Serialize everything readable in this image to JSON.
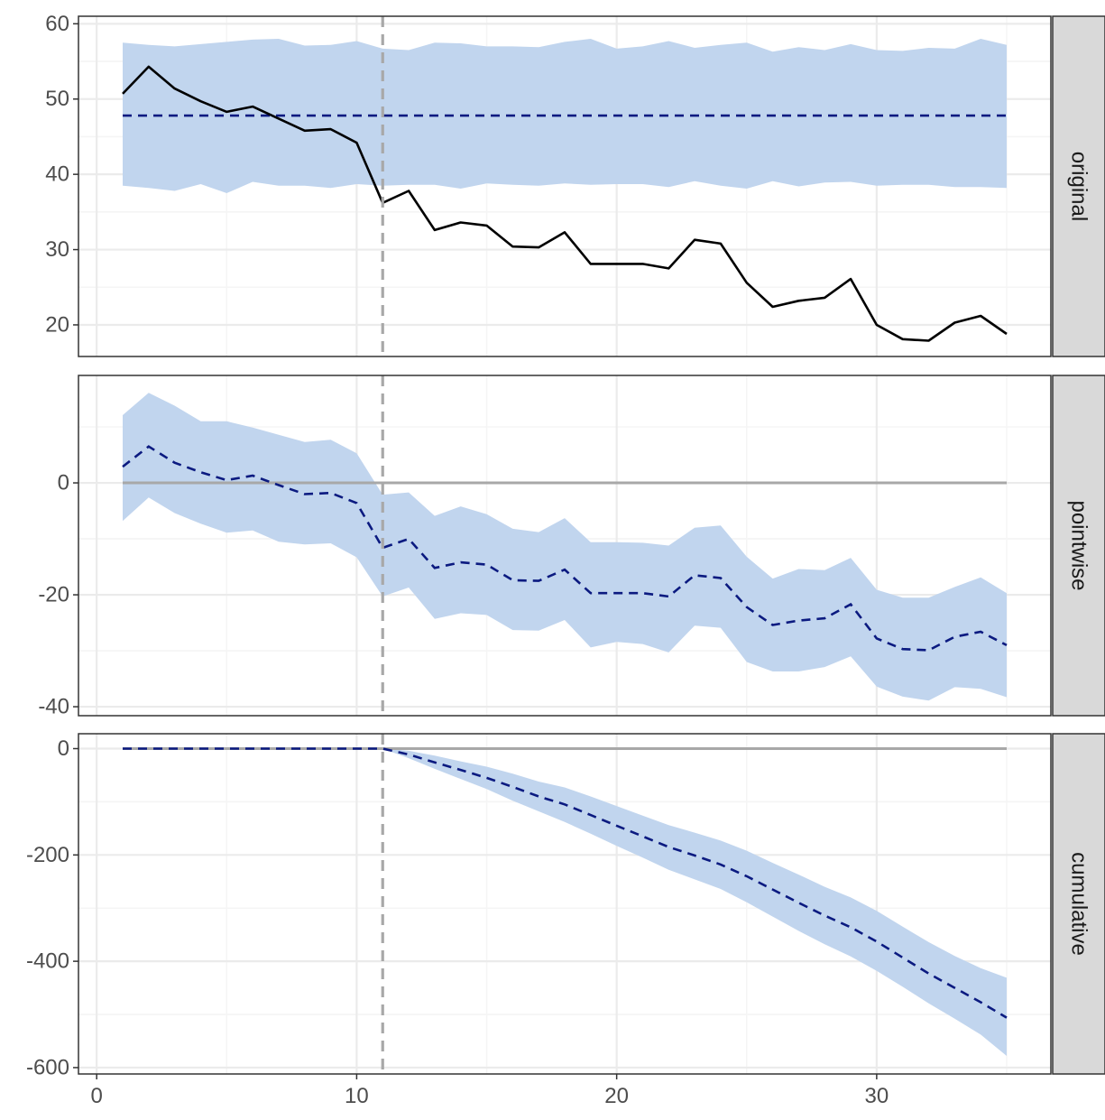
{
  "chart_data": {
    "type": "line",
    "x_ticks": [
      0,
      10,
      20,
      30
    ],
    "xlim": [
      -0.7,
      36.7
    ],
    "intervention_x": 11,
    "colors": {
      "band": "#c1d5ee",
      "observed_line": "#000000",
      "predicted_line": "#0b1a80",
      "reference_line": "#a8a8a8",
      "intervention_line": "#a8a8a8",
      "strip_bg": "#d9d9d9",
      "grid_major": "#ebebeb",
      "grid_minor": "#f5f5f5"
    },
    "panels": [
      {
        "strip_label": "original",
        "ylim": [
          15.8,
          61.0
        ],
        "y_ticks": [
          20,
          30,
          40,
          50,
          60
        ],
        "y_tick_labels": [
          "20",
          "30",
          "40",
          "50",
          "60"
        ],
        "x": [
          1,
          2,
          3,
          4,
          5,
          6,
          7,
          8,
          9,
          10,
          11,
          12,
          13,
          14,
          15,
          16,
          17,
          18,
          19,
          20,
          21,
          22,
          23,
          24,
          25,
          26,
          27,
          28,
          29,
          30,
          31,
          32,
          33,
          34,
          35
        ],
        "observed": [
          50.7,
          54.3,
          51.4,
          49.7,
          48.3,
          49.0,
          47.4,
          45.8,
          46.0,
          44.2,
          36.2,
          37.8,
          32.6,
          33.6,
          33.2,
          30.4,
          30.3,
          32.3,
          28.1,
          28.1,
          28.1,
          27.5,
          31.3,
          30.8,
          25.6,
          22.4,
          23.2,
          23.6,
          26.1,
          20.0,
          18.1,
          17.9,
          20.3,
          21.2,
          18.8
        ],
        "predicted": [
          47.8,
          47.8,
          47.8,
          47.8,
          47.8,
          47.8,
          47.8,
          47.8,
          47.8,
          47.8,
          47.8,
          47.8,
          47.8,
          47.8,
          47.8,
          47.8,
          47.8,
          47.8,
          47.8,
          47.8,
          47.8,
          47.8,
          47.8,
          47.8,
          47.8,
          47.8,
          47.8,
          47.8,
          47.8,
          47.8,
          47.8,
          47.8,
          47.8,
          47.8,
          47.8
        ],
        "lower": [
          38.5,
          38.2,
          37.8,
          38.7,
          37.5,
          39.0,
          38.5,
          38.5,
          38.2,
          38.7,
          38.5,
          38.6,
          38.6,
          38.1,
          38.8,
          38.6,
          38.5,
          38.8,
          38.6,
          38.7,
          38.7,
          38.3,
          39.1,
          38.5,
          38.1,
          39.1,
          38.4,
          38.9,
          39.0,
          38.5,
          38.6,
          38.6,
          38.3,
          38.3,
          38.2
        ],
        "upper": [
          57.5,
          57.2,
          57.0,
          57.3,
          57.6,
          57.9,
          58.0,
          57.1,
          57.2,
          57.7,
          56.7,
          56.5,
          57.5,
          57.4,
          57.0,
          57.0,
          56.9,
          57.6,
          58.0,
          56.7,
          57.0,
          57.7,
          56.8,
          57.2,
          57.5,
          56.3,
          56.9,
          56.5,
          57.3,
          56.5,
          56.4,
          56.8,
          56.7,
          58.0,
          57.2
        ],
        "show_reference": false
      },
      {
        "strip_label": "pointwise",
        "ylim": [
          -41.6,
          19.2
        ],
        "y_ticks": [
          -40,
          -20,
          0
        ],
        "y_tick_labels": [
          "-40",
          "-20",
          "0"
        ],
        "x": [
          1,
          2,
          3,
          4,
          5,
          6,
          7,
          8,
          9,
          10,
          11,
          12,
          13,
          14,
          15,
          16,
          17,
          18,
          19,
          20,
          21,
          22,
          23,
          24,
          25,
          26,
          27,
          28,
          29,
          30,
          31,
          32,
          33,
          34,
          35
        ],
        "predicted": [
          2.9,
          6.5,
          3.6,
          1.9,
          0.5,
          1.3,
          -0.4,
          -2.0,
          -1.8,
          -3.6,
          -11.6,
          -10.0,
          -15.2,
          -14.2,
          -14.6,
          -17.4,
          -17.5,
          -15.5,
          -19.7,
          -19.7,
          -19.7,
          -20.3,
          -16.5,
          -17.0,
          -22.2,
          -25.4,
          -24.6,
          -24.2,
          -21.7,
          -27.8,
          -29.7,
          -29.9,
          -27.5,
          -26.6,
          -29.0
        ],
        "lower": [
          -6.8,
          -2.6,
          -5.4,
          -7.3,
          -8.9,
          -8.5,
          -10.5,
          -11.0,
          -10.8,
          -13.3,
          -20.3,
          -18.7,
          -24.3,
          -23.3,
          -23.6,
          -26.3,
          -26.4,
          -24.5,
          -29.4,
          -28.4,
          -28.8,
          -30.3,
          -25.5,
          -25.9,
          -32.0,
          -33.7,
          -33.7,
          -32.9,
          -31.0,
          -36.4,
          -38.2,
          -38.9,
          -36.5,
          -36.8,
          -38.3
        ],
        "upper": [
          12.1,
          16.1,
          13.8,
          11.0,
          11.0,
          9.9,
          8.6,
          7.3,
          7.7,
          5.3,
          -2.1,
          -1.7,
          -5.9,
          -4.2,
          -5.6,
          -8.2,
          -8.8,
          -6.3,
          -10.6,
          -10.6,
          -10.7,
          -11.2,
          -8.0,
          -7.6,
          -13.2,
          -17.1,
          -15.4,
          -15.6,
          -13.4,
          -19.1,
          -20.5,
          -20.5,
          -18.6,
          -16.9,
          -19.7
        ]
      },
      {
        "strip_label": "cumulative",
        "ylim": [
          -612,
          28
        ],
        "y_ticks": [
          -600,
          -400,
          -200,
          0
        ],
        "y_tick_labels": [
          "-600",
          "-400",
          "-200",
          "0"
        ],
        "x": [
          1,
          2,
          3,
          4,
          5,
          6,
          7,
          8,
          9,
          10,
          11,
          12,
          13,
          14,
          15,
          16,
          17,
          18,
          19,
          20,
          21,
          22,
          23,
          24,
          25,
          26,
          27,
          28,
          29,
          30,
          31,
          32,
          33,
          34,
          35
        ],
        "predicted": [
          0,
          0,
          0,
          0,
          0,
          0,
          0,
          0,
          0,
          0,
          0,
          -11,
          -26,
          -40,
          -55,
          -72,
          -90,
          -105,
          -125,
          -145,
          -165,
          -185,
          -201,
          -218,
          -240,
          -265,
          -290,
          -314,
          -336,
          -363,
          -393,
          -423,
          -450,
          -477,
          -506
        ],
        "lower": [
          0,
          0,
          0,
          0,
          0,
          0,
          0,
          0,
          0,
          0,
          0,
          -18,
          -38,
          -57,
          -76,
          -98,
          -118,
          -138,
          -160,
          -183,
          -205,
          -228,
          -246,
          -264,
          -289,
          -316,
          -343,
          -368,
          -391,
          -418,
          -448,
          -479,
          -508,
          -538,
          -578
        ],
        "upper": [
          0,
          0,
          0,
          0,
          0,
          0,
          0,
          0,
          0,
          0,
          0,
          -4,
          -13,
          -24,
          -34,
          -47,
          -62,
          -73,
          -90,
          -108,
          -126,
          -144,
          -158,
          -173,
          -192,
          -215,
          -237,
          -260,
          -280,
          -305,
          -335,
          -364,
          -390,
          -413,
          -431
        ]
      }
    ]
  }
}
